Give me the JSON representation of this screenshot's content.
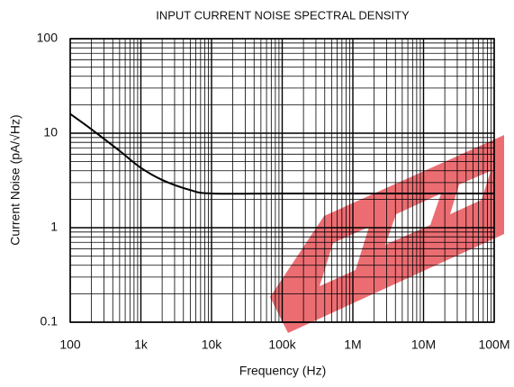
{
  "chart_data": {
    "type": "line",
    "title": "INPUT CURRENT NOISE SPECTRAL DENSITY",
    "x_label": "Frequency (Hz)",
    "y_label": "Current Noise (pA/√Hz)",
    "x": [
      100,
      200,
      500,
      1000,
      2000,
      5000,
      10000,
      100000,
      1000000,
      10000000,
      100000000
    ],
    "series": [
      {
        "color": "#000000",
        "values": [
          16,
          11,
          6.5,
          4.3,
          3.2,
          2.5,
          2.3,
          2.3,
          2.3,
          2.3,
          2.3
        ]
      }
    ],
    "xlim": [
      100,
      100000000
    ],
    "ylim": [
      0.1,
      100
    ],
    "xticks": [
      100,
      {
        "value": 1000,
        "label": "1k"
      },
      {
        "value": 10000,
        "label": "10k"
      },
      {
        "value": 100000,
        "label": "100k"
      },
      {
        "value": 1000000,
        "label": "1M"
      },
      {
        "value": 10000000,
        "label": "10M"
      },
      {
        "value": 100000000,
        "label": "100M"
      }
    ],
    "yticks": [
      0.1,
      1,
      10,
      100
    ],
    "xscale": "log",
    "yscale": "log",
    "grid": true,
    "minor_grid": true
  }
}
